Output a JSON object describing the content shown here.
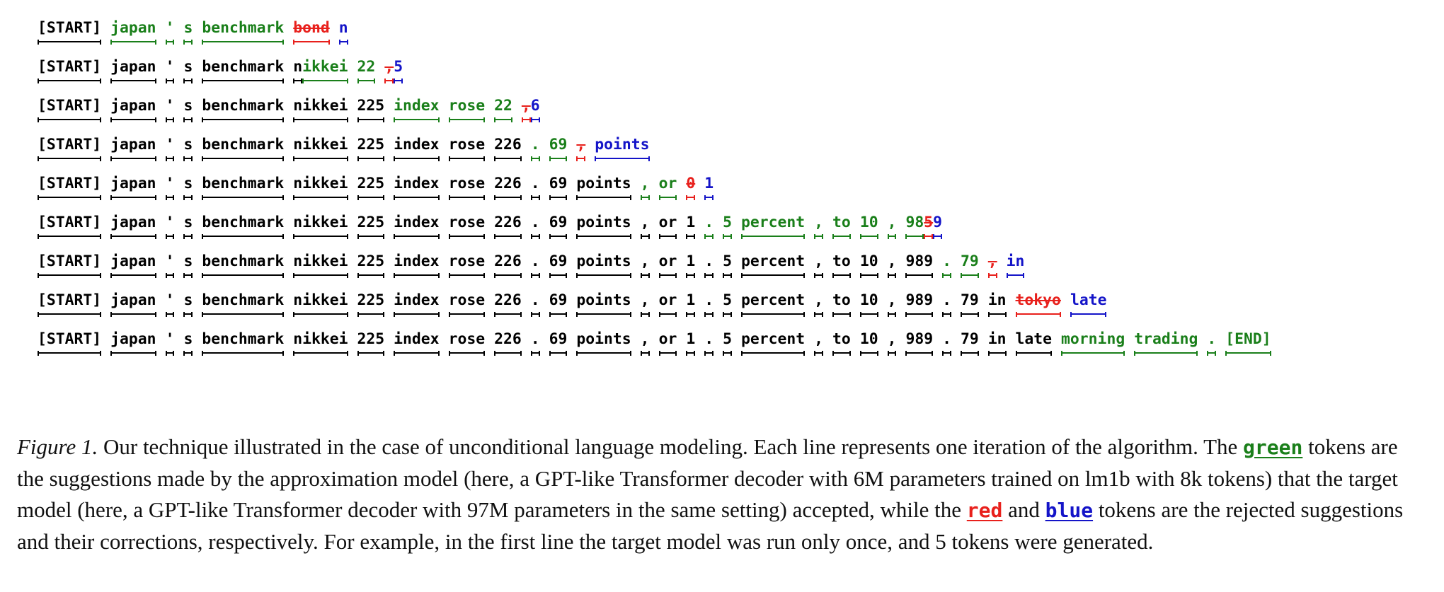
{
  "figure": {
    "lines": [
      [
        {
          "t": "[START]",
          "s": "acc"
        },
        {
          "t": "japan",
          "s": "green"
        },
        {
          "t": "'",
          "s": "green"
        },
        {
          "t": "s",
          "s": "green"
        },
        {
          "t": "benchmark",
          "s": "green"
        },
        {
          "t": "bond",
          "s": "red"
        },
        {
          "t": "n",
          "s": "blue"
        }
      ],
      [
        {
          "t": "[START]",
          "s": "acc"
        },
        {
          "t": "japan",
          "s": "acc"
        },
        {
          "t": "'",
          "s": "acc"
        },
        {
          "t": "s",
          "s": "acc"
        },
        {
          "t": "benchmark",
          "s": "acc"
        },
        {
          "t": "n",
          "s": "acc"
        },
        {
          "t": "ikkei",
          "s": "green",
          "attach": true
        },
        {
          "t": "22",
          "s": "green"
        },
        {
          "t": ",",
          "s": "red"
        },
        {
          "t": "5",
          "s": "blue",
          "attach": true
        }
      ],
      [
        {
          "t": "[START]",
          "s": "acc"
        },
        {
          "t": "japan",
          "s": "acc"
        },
        {
          "t": "'",
          "s": "acc"
        },
        {
          "t": "s",
          "s": "acc"
        },
        {
          "t": "benchmark",
          "s": "acc"
        },
        {
          "t": "nikkei",
          "s": "acc"
        },
        {
          "t": "225",
          "s": "acc"
        },
        {
          "t": "index",
          "s": "green"
        },
        {
          "t": "rose",
          "s": "green"
        },
        {
          "t": "22",
          "s": "green"
        },
        {
          "t": ",",
          "s": "red"
        },
        {
          "t": "6",
          "s": "blue",
          "attach": true
        }
      ],
      [
        {
          "t": "[START]",
          "s": "acc"
        },
        {
          "t": "japan",
          "s": "acc"
        },
        {
          "t": "'",
          "s": "acc"
        },
        {
          "t": "s",
          "s": "acc"
        },
        {
          "t": "benchmark",
          "s": "acc"
        },
        {
          "t": "nikkei",
          "s": "acc"
        },
        {
          "t": "225",
          "s": "acc"
        },
        {
          "t": "index",
          "s": "acc"
        },
        {
          "t": "rose",
          "s": "acc"
        },
        {
          "t": "226",
          "s": "acc"
        },
        {
          "t": ".",
          "s": "green"
        },
        {
          "t": "69",
          "s": "green"
        },
        {
          "t": ",",
          "s": "red"
        },
        {
          "t": "points",
          "s": "blue"
        }
      ],
      [
        {
          "t": "[START]",
          "s": "acc"
        },
        {
          "t": "japan",
          "s": "acc"
        },
        {
          "t": "'",
          "s": "acc"
        },
        {
          "t": "s",
          "s": "acc"
        },
        {
          "t": "benchmark",
          "s": "acc"
        },
        {
          "t": "nikkei",
          "s": "acc"
        },
        {
          "t": "225",
          "s": "acc"
        },
        {
          "t": "index",
          "s": "acc"
        },
        {
          "t": "rose",
          "s": "acc"
        },
        {
          "t": "226",
          "s": "acc"
        },
        {
          "t": ".",
          "s": "acc"
        },
        {
          "t": "69",
          "s": "acc"
        },
        {
          "t": "points",
          "s": "acc"
        },
        {
          "t": ",",
          "s": "green"
        },
        {
          "t": "or",
          "s": "green"
        },
        {
          "t": "0",
          "s": "red"
        },
        {
          "t": "1",
          "s": "blue"
        }
      ],
      [
        {
          "t": "[START]",
          "s": "acc"
        },
        {
          "t": "japan",
          "s": "acc"
        },
        {
          "t": "'",
          "s": "acc"
        },
        {
          "t": "s",
          "s": "acc"
        },
        {
          "t": "benchmark",
          "s": "acc"
        },
        {
          "t": "nikkei",
          "s": "acc"
        },
        {
          "t": "225",
          "s": "acc"
        },
        {
          "t": "index",
          "s": "acc"
        },
        {
          "t": "rose",
          "s": "acc"
        },
        {
          "t": "226",
          "s": "acc"
        },
        {
          "t": ".",
          "s": "acc"
        },
        {
          "t": "69",
          "s": "acc"
        },
        {
          "t": "points",
          "s": "acc"
        },
        {
          "t": ",",
          "s": "acc"
        },
        {
          "t": "or",
          "s": "acc"
        },
        {
          "t": "1",
          "s": "acc"
        },
        {
          "t": ".",
          "s": "green"
        },
        {
          "t": "5",
          "s": "green"
        },
        {
          "t": "percent",
          "s": "green"
        },
        {
          "t": ",",
          "s": "green"
        },
        {
          "t": "to",
          "s": "green"
        },
        {
          "t": "10",
          "s": "green"
        },
        {
          "t": ",",
          "s": "green"
        },
        {
          "t": "98",
          "s": "green"
        },
        {
          "t": "5",
          "s": "red",
          "attach": true
        },
        {
          "t": "9",
          "s": "blue",
          "attach": true
        }
      ],
      [
        {
          "t": "[START]",
          "s": "acc"
        },
        {
          "t": "japan",
          "s": "acc"
        },
        {
          "t": "'",
          "s": "acc"
        },
        {
          "t": "s",
          "s": "acc"
        },
        {
          "t": "benchmark",
          "s": "acc"
        },
        {
          "t": "nikkei",
          "s": "acc"
        },
        {
          "t": "225",
          "s": "acc"
        },
        {
          "t": "index",
          "s": "acc"
        },
        {
          "t": "rose",
          "s": "acc"
        },
        {
          "t": "226",
          "s": "acc"
        },
        {
          "t": ".",
          "s": "acc"
        },
        {
          "t": "69",
          "s": "acc"
        },
        {
          "t": "points",
          "s": "acc"
        },
        {
          "t": ",",
          "s": "acc"
        },
        {
          "t": "or",
          "s": "acc"
        },
        {
          "t": "1",
          "s": "acc"
        },
        {
          "t": ".",
          "s": "acc"
        },
        {
          "t": "5",
          "s": "acc"
        },
        {
          "t": "percent",
          "s": "acc"
        },
        {
          "t": ",",
          "s": "acc"
        },
        {
          "t": "to",
          "s": "acc"
        },
        {
          "t": "10",
          "s": "acc"
        },
        {
          "t": ",",
          "s": "acc"
        },
        {
          "t": "989",
          "s": "acc"
        },
        {
          "t": ".",
          "s": "green"
        },
        {
          "t": "79",
          "s": "green"
        },
        {
          "t": ",",
          "s": "red"
        },
        {
          "t": "in",
          "s": "blue"
        }
      ],
      [
        {
          "t": "[START]",
          "s": "acc"
        },
        {
          "t": "japan",
          "s": "acc"
        },
        {
          "t": "'",
          "s": "acc"
        },
        {
          "t": "s",
          "s": "acc"
        },
        {
          "t": "benchmark",
          "s": "acc"
        },
        {
          "t": "nikkei",
          "s": "acc"
        },
        {
          "t": "225",
          "s": "acc"
        },
        {
          "t": "index",
          "s": "acc"
        },
        {
          "t": "rose",
          "s": "acc"
        },
        {
          "t": "226",
          "s": "acc"
        },
        {
          "t": ".",
          "s": "acc"
        },
        {
          "t": "69",
          "s": "acc"
        },
        {
          "t": "points",
          "s": "acc"
        },
        {
          "t": ",",
          "s": "acc"
        },
        {
          "t": "or",
          "s": "acc"
        },
        {
          "t": "1",
          "s": "acc"
        },
        {
          "t": ".",
          "s": "acc"
        },
        {
          "t": "5",
          "s": "acc"
        },
        {
          "t": "percent",
          "s": "acc"
        },
        {
          "t": ",",
          "s": "acc"
        },
        {
          "t": "to",
          "s": "acc"
        },
        {
          "t": "10",
          "s": "acc"
        },
        {
          "t": ",",
          "s": "acc"
        },
        {
          "t": "989",
          "s": "acc"
        },
        {
          "t": ".",
          "s": "acc"
        },
        {
          "t": "79",
          "s": "acc"
        },
        {
          "t": "in",
          "s": "acc"
        },
        {
          "t": "tokyo",
          "s": "red"
        },
        {
          "t": "late",
          "s": "blue"
        }
      ],
      [
        {
          "t": "[START]",
          "s": "acc"
        },
        {
          "t": "japan",
          "s": "acc"
        },
        {
          "t": "'",
          "s": "acc"
        },
        {
          "t": "s",
          "s": "acc"
        },
        {
          "t": "benchmark",
          "s": "acc"
        },
        {
          "t": "nikkei",
          "s": "acc"
        },
        {
          "t": "225",
          "s": "acc"
        },
        {
          "t": "index",
          "s": "acc"
        },
        {
          "t": "rose",
          "s": "acc"
        },
        {
          "t": "226",
          "s": "acc"
        },
        {
          "t": ".",
          "s": "acc"
        },
        {
          "t": "69",
          "s": "acc"
        },
        {
          "t": "points",
          "s": "acc"
        },
        {
          "t": ",",
          "s": "acc"
        },
        {
          "t": "or",
          "s": "acc"
        },
        {
          "t": "1",
          "s": "acc"
        },
        {
          "t": ".",
          "s": "acc"
        },
        {
          "t": "5",
          "s": "acc"
        },
        {
          "t": "percent",
          "s": "acc"
        },
        {
          "t": ",",
          "s": "acc"
        },
        {
          "t": "to",
          "s": "acc"
        },
        {
          "t": "10",
          "s": "acc"
        },
        {
          "t": ",",
          "s": "acc"
        },
        {
          "t": "989",
          "s": "acc"
        },
        {
          "t": ".",
          "s": "acc"
        },
        {
          "t": "79",
          "s": "acc"
        },
        {
          "t": "in",
          "s": "acc"
        },
        {
          "t": "late",
          "s": "acc"
        },
        {
          "t": "morning",
          "s": "green"
        },
        {
          "t": "trading",
          "s": "green"
        },
        {
          "t": ".",
          "s": "green"
        },
        {
          "t": "[END]",
          "s": "green"
        }
      ]
    ]
  },
  "caption": {
    "label": "Figure 1.",
    "text_1": " Our technique illustrated in the case of unconditional language modeling. Each line represents one iteration of the algorithm. The ",
    "kw_green": "green",
    "text_2": " tokens are the suggestions made by the approximation model (here, a GPT-like Transformer decoder with 6M parameters trained on lm1b with 8k tokens) that the target model (here, a GPT-like Transformer decoder with 97M parameters in the same setting) accepted, while the ",
    "kw_red": "red",
    "text_3": " and ",
    "kw_blue": "blue",
    "text_4": " tokens are the rejected suggestions and their corrections, respectively. For example, in the first line the target model was run only once, and 5 tokens were generated."
  },
  "colors": {
    "accepted": "#000000",
    "green": "#1a7f1a",
    "red": "#e8201c",
    "blue": "#1414c8"
  }
}
